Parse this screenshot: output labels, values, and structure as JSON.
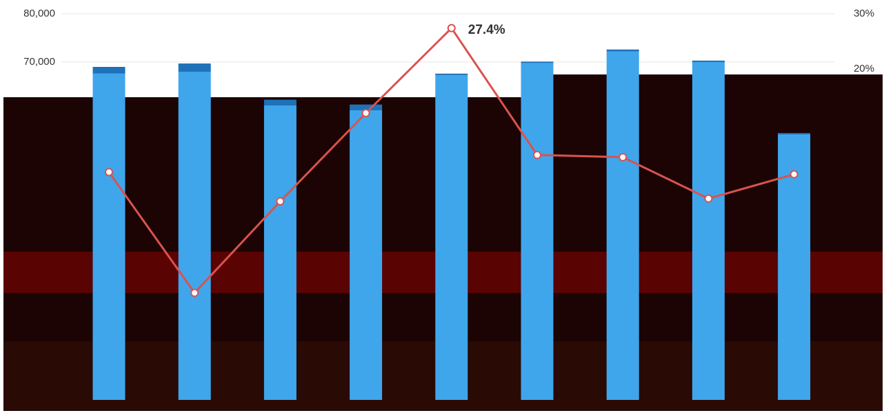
{
  "chart_data": {
    "type": "combo",
    "categories": [
      null,
      null,
      null,
      null,
      null,
      null,
      null,
      null,
      null
    ],
    "series": [
      {
        "type": "bar",
        "color": "#3fa6ec",
        "values": [
          67600,
          68000,
          61000,
          60000,
          67300,
          69800,
          72200,
          70000,
          55000
        ]
      },
      {
        "type": "bar",
        "color": "#1f72b8",
        "values": [
          1400,
          1700,
          1200,
          1200,
          300,
          300,
          400,
          300,
          300
        ]
      },
      {
        "type": "line",
        "axis": "y2",
        "color": "#d9534f",
        "values": [
          1.3,
          -20.6,
          -4,
          12,
          27.4,
          4.4,
          4.0,
          -3.5,
          0.9
        ],
        "value_labels": [
          null,
          null,
          null,
          null,
          "27.4%",
          null,
          null,
          null,
          null
        ]
      }
    ],
    "ylim": [
      0,
      80000
    ],
    "yticks": [
      {
        "value": 70000,
        "label": "70,000"
      },
      {
        "value": 80000,
        "label": "80,000"
      }
    ],
    "y2lim": [
      -40,
      30
    ],
    "y2ticks": [
      {
        "value": 20,
        "label": "20%"
      },
      {
        "value": 30,
        "label": "30%"
      }
    ],
    "grid": true
  }
}
